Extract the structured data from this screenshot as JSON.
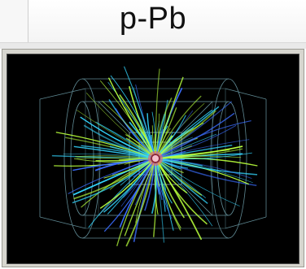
{
  "header": {
    "title": "p-Pb"
  },
  "event_display": {
    "colors": {
      "background": "#000000",
      "frame": "#d7d6cf",
      "detector_wireframe": "#7fb7c4",
      "track_cyan": "#33d6ff",
      "track_green": "#b8ff3c",
      "track_blue": "#3a6dff",
      "core": "#ff4a6b"
    }
  }
}
